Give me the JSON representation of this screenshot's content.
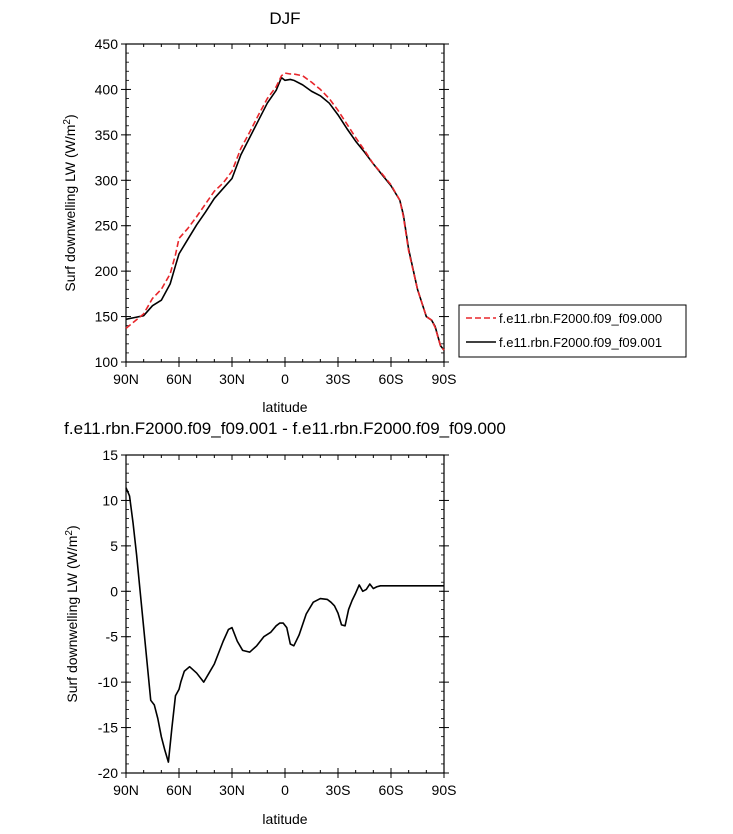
{
  "chart_data": [
    {
      "type": "line",
      "title": "DJF",
      "xlabel": "latitude",
      "ylabel": "Surf downwelling LW (W/m",
      "ylabel_sup": "2",
      "ylabel_close": ")",
      "xlim": [
        -90,
        90
      ],
      "ylim": [
        100,
        450
      ],
      "xticks": [
        -90,
        -60,
        -30,
        0,
        30,
        60,
        90
      ],
      "xtick_labels": [
        "90N",
        "60N",
        "30N",
        "0",
        "30S",
        "60S",
        "90S"
      ],
      "yticks": [
        100,
        150,
        200,
        250,
        300,
        350,
        400,
        450
      ],
      "ytick_labels": [
        "100",
        "150",
        "200",
        "250",
        "300",
        "350",
        "400",
        "450"
      ],
      "legend": "outside-right",
      "series": [
        {
          "name": "f.e11.rbn.F2000.f09_f09.000",
          "color": "#e8262b",
          "dash": "dashed",
          "x": [
            -90,
            -85,
            -80,
            -75,
            -70,
            -65,
            -62,
            -60,
            -55,
            -50,
            -45,
            -40,
            -35,
            -30,
            -25,
            -20,
            -15,
            -10,
            -5,
            -2,
            0,
            3,
            5,
            10,
            15,
            20,
            25,
            30,
            35,
            40,
            45,
            50,
            55,
            60,
            65,
            67,
            70,
            75,
            80,
            83,
            85,
            88,
            90
          ],
          "y": [
            137,
            145,
            153,
            170,
            180,
            197,
            218,
            236,
            247,
            260,
            274,
            288,
            297,
            310,
            335,
            353,
            372,
            390,
            403,
            415,
            418,
            417,
            417,
            415,
            408,
            400,
            390,
            377,
            362,
            347,
            333,
            318,
            307,
            295,
            278,
            260,
            222,
            180,
            150,
            146,
            138,
            118,
            113
          ]
        },
        {
          "name": "f.e11.rbn.F2000.f09_f09.001",
          "color": "#000000",
          "dash": "solid",
          "x": [
            -90,
            -85,
            -80,
            -75,
            -70,
            -65,
            -62,
            -60,
            -55,
            -50,
            -45,
            -40,
            -35,
            -30,
            -25,
            -20,
            -15,
            -10,
            -5,
            -2,
            0,
            3,
            5,
            10,
            15,
            20,
            25,
            30,
            35,
            40,
            45,
            50,
            55,
            60,
            65,
            67,
            70,
            75,
            80,
            83,
            85,
            88,
            90
          ],
          "y": [
            147,
            149,
            151,
            162,
            168,
            186,
            206,
            219,
            235,
            251,
            265,
            280,
            291,
            302,
            328,
            347,
            366,
            385,
            399,
            413,
            410,
            411,
            410,
            405,
            398,
            393,
            385,
            372,
            357,
            343,
            331,
            318,
            306,
            294,
            278,
            262,
            224,
            180,
            150,
            146,
            139,
            118,
            113
          ]
        }
      ]
    },
    {
      "type": "line",
      "title": "f.e11.rbn.F2000.f09_f09.001 - f.e11.rbn.F2000.f09_f09.000",
      "xlabel": "latitude",
      "ylabel": "Surf downwelling LW (W/m",
      "ylabel_sup": "2",
      "ylabel_close": ")",
      "xlim": [
        -90,
        90
      ],
      "ylim": [
        -20,
        15
      ],
      "xticks": [
        -90,
        -60,
        -30,
        0,
        30,
        60,
        90
      ],
      "xtick_labels": [
        "90N",
        "60N",
        "30N",
        "0",
        "30S",
        "60S",
        "90S"
      ],
      "yticks": [
        -20,
        -15,
        -10,
        -5,
        0,
        5,
        10,
        15
      ],
      "ytick_labels": [
        "-20",
        "-15",
        "-10",
        "-5",
        "0",
        "5",
        "10",
        "15"
      ],
      "series": [
        {
          "color": "#000000",
          "dash": "solid",
          "x": [
            -90,
            -88,
            -86,
            -84,
            -82,
            -80,
            -78,
            -76,
            -74,
            -72,
            -70,
            -68,
            -66,
            -64,
            -62,
            -60,
            -59,
            -57,
            -54,
            -50,
            -46,
            -43,
            -40,
            -38,
            -35,
            -32,
            -30,
            -27,
            -24,
            -20,
            -16,
            -12,
            -8,
            -5,
            -3,
            -1,
            1,
            3,
            5,
            8,
            12,
            16,
            20,
            24,
            26,
            28,
            30,
            32,
            34,
            36,
            38,
            40,
            42,
            44,
            46,
            48,
            50,
            52,
            54,
            56,
            58,
            60,
            62,
            64,
            66,
            68,
            70,
            72,
            74,
            76,
            78,
            80,
            82,
            84,
            86,
            88,
            90
          ],
          "y": [
            11.4,
            10.5,
            7.5,
            4.0,
            0,
            -4.0,
            -8.0,
            -12.0,
            -12.5,
            -14,
            -16,
            -17.5,
            -18.8,
            -15.0,
            -11.5,
            -10.8,
            -10.0,
            -8.8,
            -8.3,
            -9.0,
            -10.0,
            -9.0,
            -8.0,
            -7.0,
            -5.5,
            -4.2,
            -4.0,
            -5.5,
            -6.5,
            -6.7,
            -6.0,
            -5.0,
            -4.5,
            -3.8,
            -3.5,
            -3.5,
            -4.0,
            -5.8,
            -6.0,
            -4.8,
            -2.5,
            -1.2,
            -0.8,
            -0.9,
            -1.2,
            -1.6,
            -2.4,
            -3.7,
            -3.8,
            -2.0,
            -1.0,
            -0.2,
            0.7,
            0,
            0.2,
            0.8,
            0.3,
            0.5,
            0.6,
            0.6,
            0.6,
            0.6,
            0.6,
            0.6,
            0.6,
            0.6,
            0.6,
            0.6,
            0.6,
            0.6,
            0.6,
            0.6,
            0.6,
            0.6,
            0.6,
            0.6,
            0.6
          ]
        }
      ]
    }
  ]
}
